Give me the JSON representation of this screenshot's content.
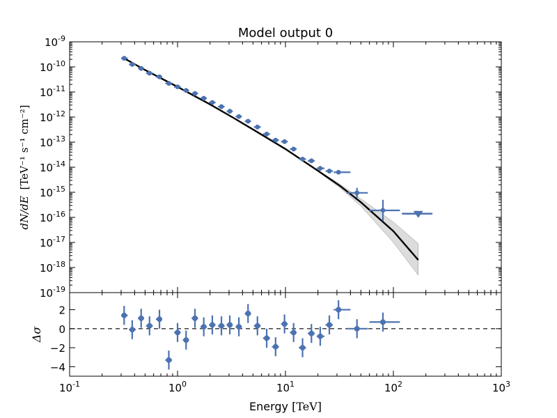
{
  "chart_data": [
    {
      "type": "scatter",
      "title": "Model output 0",
      "xlabel_prefix": "Energy ",
      "xlabel_unit": "[TeV]",
      "ylabel_sym": "dN/dE",
      "ylabel_unit": "[TeV⁻¹ s⁻¹ cm⁻²]",
      "xscale": "log",
      "yscale": "log",
      "xlim": [
        0.1,
        1000
      ],
      "ylim": [
        1e-19,
        1e-09
      ],
      "x_tick_labels": [
        {
          "base": "10",
          "exp": "-1",
          "value": 0.1
        },
        {
          "base": "10",
          "exp": "0",
          "value": 1
        },
        {
          "base": "10",
          "exp": "1",
          "value": 10
        },
        {
          "base": "10",
          "exp": "2",
          "value": 100
        },
        {
          "base": "10",
          "exp": "3",
          "value": 1000
        }
      ],
      "y_tick_labels": [
        {
          "base": "10",
          "exp": "-9",
          "value": 1e-09
        },
        {
          "base": "10",
          "exp": "-10",
          "value": 1e-10
        },
        {
          "base": "10",
          "exp": "-11",
          "value": 1e-11
        },
        {
          "base": "10",
          "exp": "-12",
          "value": 1e-12
        },
        {
          "base": "10",
          "exp": "-13",
          "value": 1e-13
        },
        {
          "base": "10",
          "exp": "-14",
          "value": 1e-14
        },
        {
          "base": "10",
          "exp": "-15",
          "value": 1e-15
        },
        {
          "base": "10",
          "exp": "-16",
          "value": 1e-16
        },
        {
          "base": "10",
          "exp": "-17",
          "value": 1e-17
        },
        {
          "base": "10",
          "exp": "-18",
          "value": 1e-18
        },
        {
          "base": "10",
          "exp": "-19",
          "value": 1e-19
        }
      ],
      "marker_color": "#4c72b0",
      "model_color": "#000000",
      "model_curve": {
        "x": [
          0.32,
          0.5,
          1,
          2,
          3.2,
          5,
          10,
          20,
          32,
          50,
          100,
          170
        ],
        "y": [
          2.2e-10,
          7.5e-11,
          1.6e-11,
          3.2e-12,
          1e-12,
          3.2e-13,
          5.3e-14,
          7.2e-15,
          1.8e-15,
          4e-16,
          2.8e-17,
          2e-18
        ]
      },
      "model_band": {
        "x": [
          20,
          32,
          50,
          100,
          170
        ],
        "y_low": [
          6.8e-15,
          1.5e-15,
          2.8e-16,
          1e-17,
          5e-19
        ],
        "y_high": [
          7.6e-15,
          2.1e-15,
          5.5e-16,
          6.5e-17,
          9e-18
        ]
      },
      "points": [
        {
          "x": 0.32,
          "y": 2.2e-10,
          "xlo": 0.3,
          "xhi": 0.345,
          "ylo": 1.9e-10,
          "yhi": 2.6e-10
        },
        {
          "x": 0.38,
          "y": 1.25e-10,
          "xlo": 0.355,
          "xhi": 0.41,
          "ylo": 1.1e-10,
          "yhi": 1.4e-10
        },
        {
          "x": 0.46,
          "y": 8.7e-11,
          "xlo": 0.43,
          "xhi": 0.49,
          "ylo": 7.8e-11,
          "yhi": 9.7e-11
        },
        {
          "x": 0.55,
          "y": 5.6e-11,
          "xlo": 0.51,
          "xhi": 0.59,
          "ylo": 5e-11,
          "yhi": 6.3e-11
        },
        {
          "x": 0.68,
          "y": 4e-11,
          "xlo": 0.63,
          "xhi": 0.72,
          "ylo": 3.6e-11,
          "yhi": 4.4e-11
        },
        {
          "x": 0.83,
          "y": 2.2e-11,
          "xlo": 0.77,
          "xhi": 0.89,
          "ylo": 1.95e-11,
          "yhi": 2.45e-11
        },
        {
          "x": 1.0,
          "y": 1.6e-11,
          "xlo": 0.93,
          "xhi": 1.07,
          "ylo": 1.45e-11,
          "yhi": 1.75e-11
        },
        {
          "x": 1.2,
          "y": 1.15e-11,
          "xlo": 1.12,
          "xhi": 1.28,
          "ylo": 1.04e-11,
          "yhi": 1.27e-11
        },
        {
          "x": 1.45,
          "y": 8.7e-12,
          "xlo": 1.35,
          "xhi": 1.55,
          "ylo": 7.9e-12,
          "yhi": 9.6e-12
        },
        {
          "x": 1.75,
          "y": 5.6e-12,
          "xlo": 1.63,
          "xhi": 1.87,
          "ylo": 5.1e-12,
          "yhi": 6.2e-12
        },
        {
          "x": 2.1,
          "y": 3.8e-12,
          "xlo": 1.96,
          "xhi": 2.25,
          "ylo": 3.45e-12,
          "yhi": 4.2e-12
        },
        {
          "x": 2.55,
          "y": 2.6e-12,
          "xlo": 2.37,
          "xhi": 2.73,
          "ylo": 2.35e-12,
          "yhi": 2.85e-12
        },
        {
          "x": 3.05,
          "y": 1.7e-12,
          "xlo": 2.85,
          "xhi": 3.25,
          "ylo": 1.55e-12,
          "yhi": 1.85e-12
        },
        {
          "x": 3.7,
          "y": 1.05e-12,
          "xlo": 3.45,
          "xhi": 3.95,
          "ylo": 9.5e-13,
          "yhi": 1.16e-12
        },
        {
          "x": 4.5,
          "y": 6.8e-13,
          "xlo": 4.2,
          "xhi": 4.8,
          "ylo": 6.1e-13,
          "yhi": 7.5e-13
        },
        {
          "x": 5.5,
          "y": 4e-13,
          "xlo": 5.1,
          "xhi": 5.9,
          "ylo": 3.6e-13,
          "yhi": 4.45e-13
        },
        {
          "x": 6.7,
          "y": 2.1e-13,
          "xlo": 6.2,
          "xhi": 7.2,
          "ylo": 1.85e-13,
          "yhi": 2.35e-13
        },
        {
          "x": 8.1,
          "y": 1.2e-13,
          "xlo": 7.5,
          "xhi": 8.7,
          "ylo": 1.05e-13,
          "yhi": 1.35e-13
        },
        {
          "x": 9.8,
          "y": 1.05e-13,
          "xlo": 9.1,
          "xhi": 10.5,
          "ylo": 9.4e-14,
          "yhi": 1.17e-13
        },
        {
          "x": 11.9,
          "y": 5.3e-14,
          "xlo": 11.0,
          "xhi": 12.7,
          "ylo": 4.7e-14,
          "yhi": 6e-14
        },
        {
          "x": 14.4,
          "y": 2.1e-14,
          "xlo": 13.3,
          "xhi": 15.5,
          "ylo": 1.7e-14,
          "yhi": 2.5e-14
        },
        {
          "x": 17.4,
          "y": 1.8e-14,
          "xlo": 16.1,
          "xhi": 18.7,
          "ylo": 1.55e-14,
          "yhi": 2.05e-14
        },
        {
          "x": 21,
          "y": 9e-15,
          "xlo": 19.5,
          "xhi": 23,
          "ylo": 7.3e-15,
          "yhi": 1.1e-14
        },
        {
          "x": 25.5,
          "y": 7e-15,
          "xlo": 23.5,
          "xhi": 27.5,
          "ylo": 5.9e-15,
          "yhi": 8.2e-15
        },
        {
          "x": 31,
          "y": 6.3e-15,
          "xlo": 28,
          "xhi": 40,
          "ylo": 5.5e-15,
          "yhi": 7.2e-15
        },
        {
          "x": 46,
          "y": 9.5e-16,
          "xlo": 37,
          "xhi": 58,
          "ylo": 6e-16,
          "yhi": 1.5e-15
        },
        {
          "x": 80,
          "y": 1.9e-16,
          "xlo": 60,
          "xhi": 115,
          "ylo": 7e-17,
          "yhi": 5e-16
        }
      ],
      "upper_limits": [
        {
          "x": 170,
          "y": 1.4e-16,
          "xlo": 120,
          "xhi": 230
        }
      ]
    },
    {
      "type": "scatter",
      "ylabel": "Δσ",
      "xscale": "log",
      "xlim": [
        0.1,
        1000
      ],
      "ylim": [
        -5,
        3.8
      ],
      "y_tick_labels": [
        "2",
        "0",
        "−2",
        "−4"
      ],
      "y_tick_values": [
        2,
        0,
        -2,
        -4
      ],
      "reference_line": 0,
      "marker_color": "#4c72b0",
      "points": [
        {
          "x": 0.32,
          "y": 1.4,
          "xlo": 0.3,
          "xhi": 0.345,
          "ylo": 0.4,
          "yhi": 2.4
        },
        {
          "x": 0.38,
          "y": -0.1,
          "xlo": 0.355,
          "xhi": 0.41,
          "ylo": -1.1,
          "yhi": 0.9
        },
        {
          "x": 0.46,
          "y": 1.1,
          "xlo": 0.43,
          "xhi": 0.49,
          "ylo": 0.1,
          "yhi": 2.1
        },
        {
          "x": 0.55,
          "y": 0.3,
          "xlo": 0.51,
          "xhi": 0.59,
          "ylo": -0.7,
          "yhi": 1.3
        },
        {
          "x": 0.68,
          "y": 1.0,
          "xlo": 0.63,
          "xhi": 0.72,
          "ylo": 0.0,
          "yhi": 2.0
        },
        {
          "x": 0.83,
          "y": -3.3,
          "xlo": 0.77,
          "xhi": 0.89,
          "ylo": -4.3,
          "yhi": -2.3
        },
        {
          "x": 1.0,
          "y": -0.4,
          "xlo": 0.93,
          "xhi": 1.07,
          "ylo": -1.4,
          "yhi": 0.6
        },
        {
          "x": 1.2,
          "y": -1.2,
          "xlo": 1.12,
          "xhi": 1.28,
          "ylo": -2.2,
          "yhi": -0.2
        },
        {
          "x": 1.45,
          "y": 1.1,
          "xlo": 1.35,
          "xhi": 1.55,
          "ylo": 0.1,
          "yhi": 2.1
        },
        {
          "x": 1.75,
          "y": 0.2,
          "xlo": 1.63,
          "xhi": 1.87,
          "ylo": -0.8,
          "yhi": 1.2
        },
        {
          "x": 2.1,
          "y": 0.4,
          "xlo": 1.96,
          "xhi": 2.25,
          "ylo": -0.6,
          "yhi": 1.4
        },
        {
          "x": 2.55,
          "y": 0.3,
          "xlo": 2.37,
          "xhi": 2.73,
          "ylo": -0.7,
          "yhi": 1.3
        },
        {
          "x": 3.05,
          "y": 0.4,
          "xlo": 2.85,
          "xhi": 3.25,
          "ylo": -0.6,
          "yhi": 1.4
        },
        {
          "x": 3.7,
          "y": 0.2,
          "xlo": 3.45,
          "xhi": 3.95,
          "ylo": -0.8,
          "yhi": 1.2
        },
        {
          "x": 4.5,
          "y": 1.6,
          "xlo": 4.2,
          "xhi": 4.8,
          "ylo": 0.6,
          "yhi": 2.6
        },
        {
          "x": 5.5,
          "y": 0.3,
          "xlo": 5.1,
          "xhi": 5.9,
          "ylo": -0.7,
          "yhi": 1.3
        },
        {
          "x": 6.7,
          "y": -1.0,
          "xlo": 6.2,
          "xhi": 7.2,
          "ylo": -2.0,
          "yhi": 0.0
        },
        {
          "x": 8.1,
          "y": -1.9,
          "xlo": 7.5,
          "xhi": 8.7,
          "ylo": -2.9,
          "yhi": -0.9
        },
        {
          "x": 9.8,
          "y": 0.5,
          "xlo": 9.1,
          "xhi": 10.5,
          "ylo": -0.5,
          "yhi": 1.5
        },
        {
          "x": 11.9,
          "y": -0.4,
          "xlo": 11.0,
          "xhi": 12.7,
          "ylo": -1.4,
          "yhi": 0.6
        },
        {
          "x": 14.4,
          "y": -2.0,
          "xlo": 13.3,
          "xhi": 15.5,
          "ylo": -3.0,
          "yhi": -1.0
        },
        {
          "x": 17.4,
          "y": -0.5,
          "xlo": 16.1,
          "xhi": 18.7,
          "ylo": -1.5,
          "yhi": 0.5
        },
        {
          "x": 21,
          "y": -0.8,
          "xlo": 19.5,
          "xhi": 23,
          "ylo": -1.8,
          "yhi": 0.2
        },
        {
          "x": 25.5,
          "y": 0.4,
          "xlo": 23.5,
          "xhi": 27.5,
          "ylo": -0.6,
          "yhi": 1.4
        },
        {
          "x": 31,
          "y": 2.0,
          "xlo": 28,
          "xhi": 40,
          "ylo": 1.0,
          "yhi": 3.0
        },
        {
          "x": 46,
          "y": 0.0,
          "xlo": 37,
          "xhi": 58,
          "ylo": -1.0,
          "yhi": 1.0
        },
        {
          "x": 80,
          "y": 0.7,
          "xlo": 60,
          "xhi": 115,
          "ylo": -0.3,
          "yhi": 1.7
        }
      ]
    }
  ]
}
